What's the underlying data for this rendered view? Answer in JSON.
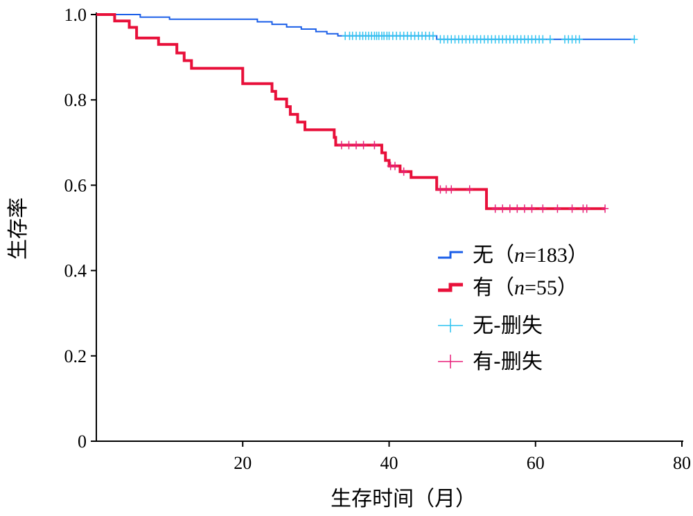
{
  "chart_data": {
    "type": "line",
    "subtype": "kaplan-meier",
    "xlabel": "生存时间（月）",
    "ylabel": "生存率",
    "xlim": [
      0,
      80
    ],
    "ylim": [
      0,
      1.0
    ],
    "xticks": [
      20,
      40,
      60,
      80
    ],
    "xtick_labels": [
      "20",
      "40",
      "60",
      "80"
    ],
    "yticks": [
      0,
      0.2,
      0.4,
      0.6,
      0.8,
      1.0
    ],
    "ytick_labels": [
      "0",
      "0.2",
      "0.4",
      "0.6",
      "0.8",
      "1.0"
    ],
    "legend_position": "right-middle",
    "series": [
      {
        "name": "无",
        "n_label": "n",
        "n_value": "=183",
        "color": "#1a5ee8",
        "stroke_width": 2,
        "steps": [
          [
            0,
            1.0
          ],
          [
            6,
            0.994
          ],
          [
            10,
            0.989
          ],
          [
            22,
            0.983
          ],
          [
            24,
            0.977
          ],
          [
            26,
            0.971
          ],
          [
            28,
            0.966
          ],
          [
            30,
            0.96
          ],
          [
            31.5,
            0.955
          ],
          [
            33,
            0.95
          ],
          [
            46.5,
            0.942
          ],
          [
            73.5,
            0.942
          ]
        ],
        "censor_color": "#2ec4f0",
        "censored": [
          34,
          34.6,
          35,
          35.5,
          36,
          36.4,
          36.8,
          37.2,
          37.6,
          38,
          38.3,
          38.6,
          39,
          39.3,
          39.7,
          40,
          40.5,
          41,
          41.5,
          42,
          42.5,
          43,
          43.5,
          44,
          44.5,
          45,
          45.5,
          46,
          47,
          47.5,
          48,
          48.5,
          49,
          49.5,
          50,
          50.5,
          51,
          51.5,
          52,
          52.5,
          53,
          53.5,
          54,
          54.5,
          55,
          55.5,
          56,
          56.5,
          57,
          57.5,
          58,
          58.5,
          59,
          59.5,
          60,
          60.5,
          61,
          62,
          64,
          64.5,
          65,
          65.5,
          66,
          73.5
        ]
      },
      {
        "name": "有",
        "n_label": "n",
        "n_value": "=55",
        "color": "#e8103a",
        "stroke_width": 4,
        "steps": [
          [
            0,
            1.0
          ],
          [
            2.5,
            0.985
          ],
          [
            4.5,
            0.97
          ],
          [
            5.5,
            0.945
          ],
          [
            8.5,
            0.93
          ],
          [
            11,
            0.91
          ],
          [
            12,
            0.892
          ],
          [
            13,
            0.874
          ],
          [
            20,
            0.838
          ],
          [
            24,
            0.82
          ],
          [
            24.5,
            0.802
          ],
          [
            26,
            0.784
          ],
          [
            26.5,
            0.766
          ],
          [
            27.5,
            0.748
          ],
          [
            28.5,
            0.73
          ],
          [
            32.5,
            0.712
          ],
          [
            32.7,
            0.694
          ],
          [
            39,
            0.676
          ],
          [
            39.5,
            0.658
          ],
          [
            40,
            0.645
          ],
          [
            41.5,
            0.632
          ],
          [
            43,
            0.618
          ],
          [
            46.5,
            0.59
          ],
          [
            53.3,
            0.545
          ],
          [
            69.5,
            0.545
          ]
        ],
        "censor_color": "#e8207a",
        "censored": [
          33.5,
          34.5,
          35.5,
          36.5,
          38,
          40.2,
          40.8,
          42,
          47,
          47.8,
          48.5,
          51,
          54.5,
          55.5,
          56.5,
          57.5,
          58.5,
          59.5,
          61,
          63,
          65,
          66.5,
          67,
          69.5
        ]
      }
    ],
    "legend_censor_suffix": "-删失"
  }
}
